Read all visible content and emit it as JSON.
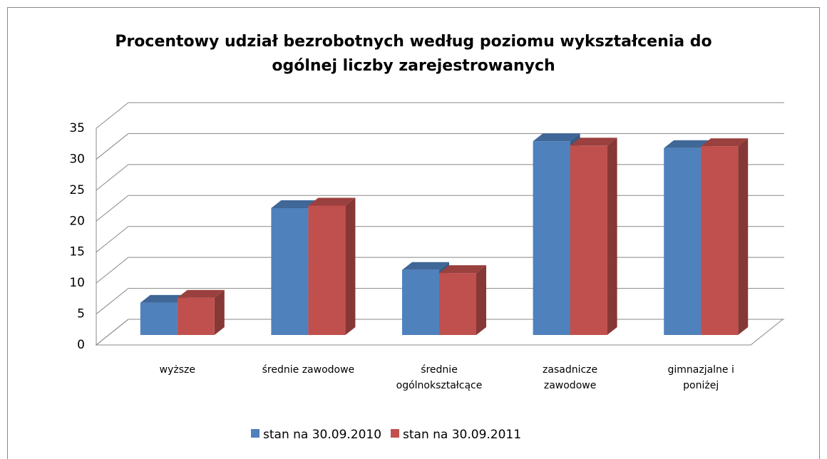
{
  "chart_data": {
    "type": "bar3d",
    "title": "Procentowy udział bezrobotnych według poziomu wykształcenia do ogólnej liczby zarejestrowanych",
    "categories": [
      "wyższe",
      "średnie zawodowe",
      "średnie ogólnokształcące",
      "zasadnicze zawodowe",
      "gimnazjalne i poniżej"
    ],
    "series": [
      {
        "name": "stan na 30.09.2010",
        "color": "#4f81bd",
        "values": [
          5.2,
          20.5,
          10.5,
          31.3,
          30.2
        ]
      },
      {
        "name": "stan na 30.09.2011",
        "color": "#c0504d",
        "values": [
          6.0,
          20.9,
          10.0,
          30.6,
          30.5
        ]
      }
    ],
    "ylim": [
      0,
      35
    ],
    "yticks": [
      0,
      5,
      10,
      15,
      20,
      25,
      30,
      35
    ],
    "grid": true,
    "legend": "bottom"
  }
}
